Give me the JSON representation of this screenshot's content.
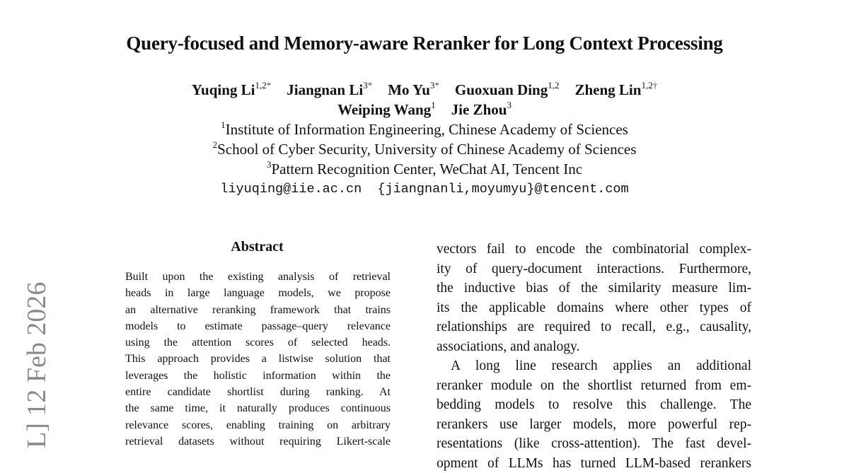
{
  "title": "Query-focused and Memory-aware Reranker for Long Context Processing",
  "authors": [
    {
      "name": "Yuqing Li",
      "sup": "1,2",
      "mark": "*"
    },
    {
      "name": "Jiangnan Li",
      "sup": "3",
      "mark": "*"
    },
    {
      "name": "Mo Yu",
      "sup": "3",
      "mark": "*"
    },
    {
      "name": "Guoxuan Ding",
      "sup": "1,2",
      "mark": ""
    },
    {
      "name": "Zheng Lin",
      "sup": "1,2",
      "mark": "†"
    },
    {
      "name": "Weiping Wang",
      "sup": "1",
      "mark": ""
    },
    {
      "name": "Jie Zhou",
      "sup": "3",
      "mark": ""
    }
  ],
  "affiliations": [
    {
      "sup": "1",
      "text": "Institute of Information Engineering, Chinese Academy of Sciences"
    },
    {
      "sup": "2",
      "text": "School of Cyber Security, University of Chinese Academy of Sciences"
    },
    {
      "sup": "3",
      "text": "Pattern Recognition Center, WeChat AI, Tencent Inc"
    }
  ],
  "emails": "liyuqing@iie.ac.cn  {jiangnanli,moyumyu}@tencent.com",
  "abstract_heading": "Abstract",
  "abstract_lines": [
    "Built upon the existing analysis of retrieval",
    "heads in large language models, we propose",
    "an alternative reranking framework that trains",
    "models to estimate passage–query relevance",
    "using the attention scores of selected heads.",
    "This approach provides a listwise solution that",
    "leverages the holistic information within the",
    "entire candidate shortlist during ranking.  At",
    "the same time, it naturally produces continuous",
    "relevance scores, enabling training on arbitrary",
    "retrieval datasets without requiring Likert-scale"
  ],
  "right_lines": [
    "vectors fail to encode the combinatorial complex-",
    "ity of query-document interactions. Furthermore,",
    "the inductive bias of the similarity measure lim-",
    "its the applicable domains where other types of",
    "relationships are required to recall, e.g., causality,",
    "associations, and analogy.",
    "A long line research applies an additional",
    "reranker module on the shortlist returned from em-",
    "bedding models to resolve this challenge.  The",
    "rerankers use larger models, more powerful rep-",
    "resentations (like cross-attention). The fast devel-",
    "opment of LLMs has turned LLM-based rerankers"
  ],
  "side_stamp": "L]  12 Feb 2026"
}
